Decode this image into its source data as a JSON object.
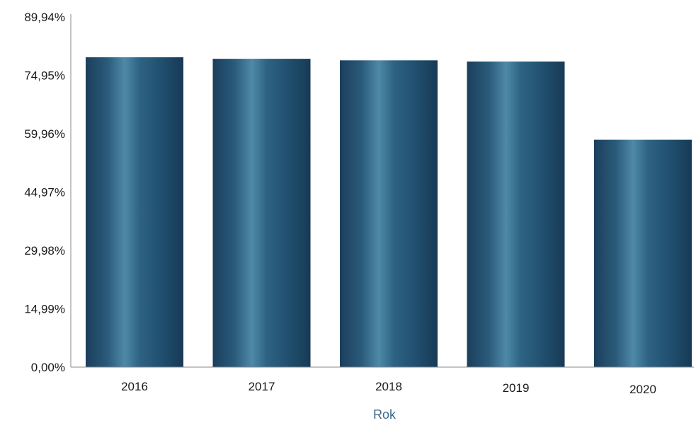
{
  "chart_data": {
    "type": "bar",
    "categories": [
      "2016",
      "2017",
      "2018",
      "2019",
      "2020"
    ],
    "values": [
      79.6,
      79.2,
      78.8,
      78.5,
      58.4
    ],
    "xlabel": "Rok",
    "ylabel": "",
    "ylim": [
      0,
      89.94
    ],
    "yticks": [
      0,
      14.99,
      29.98,
      44.97,
      59.96,
      74.95,
      89.94
    ],
    "ytick_labels": [
      "0,00%",
      "14,99%",
      "29,98%",
      "44,97%",
      "59,96%",
      "74,95%",
      "89,94%"
    ],
    "grid": false,
    "legend": "none",
    "colors": {
      "bar_edge": "#1d4a68",
      "bar_highlight": "#4f89a8",
      "axis": "#8a8a8a",
      "xlabel": "#3a6a8e"
    }
  }
}
